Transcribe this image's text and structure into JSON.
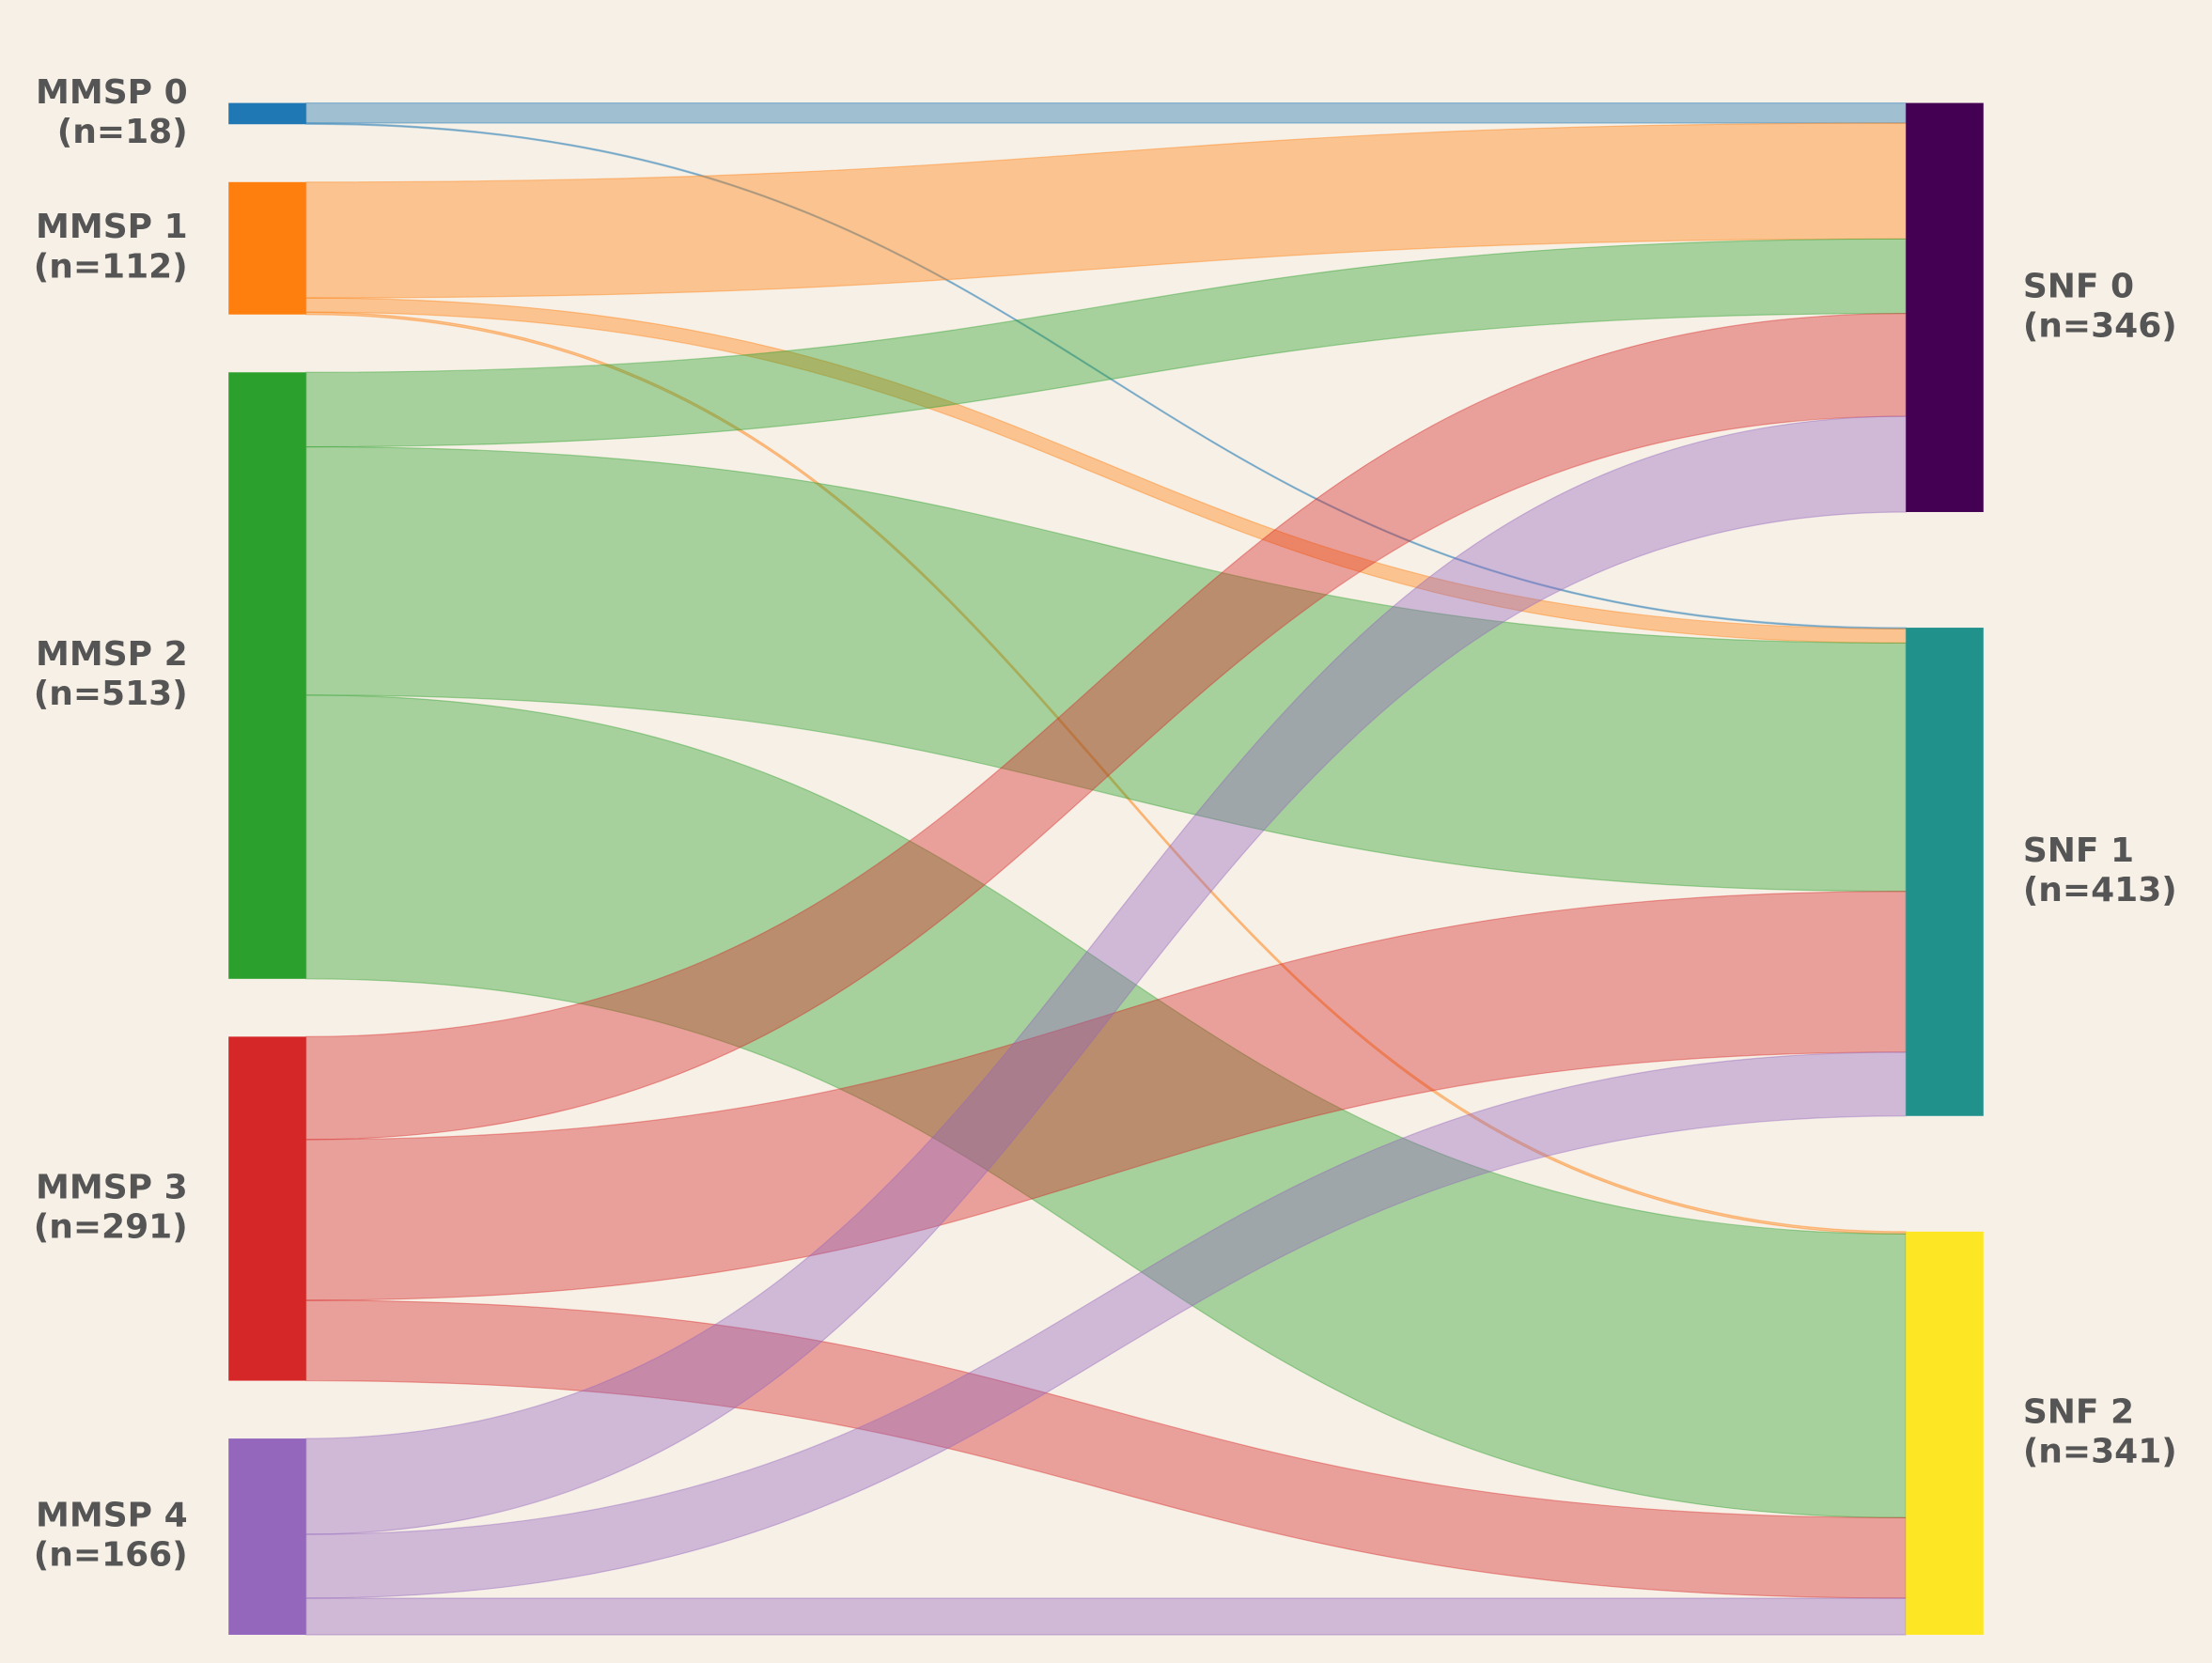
{
  "chart_data": {
    "type": "sankey",
    "nodes": [
      {
        "name": "MMSP 0",
        "value": 18,
        "value_label": "(n=18)",
        "color": "#1f77b4",
        "column": "left"
      },
      {
        "name": "MMSP 1",
        "value": 112,
        "value_label": "(n=112)",
        "color": "#ff7f0e",
        "column": "left"
      },
      {
        "name": "MMSP 2",
        "value": 513,
        "value_label": "(n=513)",
        "color": "#2ca02c",
        "column": "left"
      },
      {
        "name": "MMSP 3",
        "value": 291,
        "value_label": "(n=291)",
        "color": "#d62728",
        "column": "left"
      },
      {
        "name": "MMSP 4",
        "value": 166,
        "value_label": "(n=166)",
        "color": "#9467bd",
        "column": "left"
      },
      {
        "name": "SNF 0",
        "value": 346,
        "value_label": "(n=346)",
        "color": "#440154",
        "column": "right"
      },
      {
        "name": "SNF 1",
        "value": 413,
        "value_label": "(n=413)",
        "color": "#21918c",
        "column": "right"
      },
      {
        "name": "SNF 2",
        "value": 341,
        "value_label": "(n=341)",
        "color": "#fde725",
        "column": "right"
      }
    ],
    "links": [
      {
        "source": 0,
        "target": 5,
        "value": 17
      },
      {
        "source": 0,
        "target": 6,
        "value": 1
      },
      {
        "source": 1,
        "target": 5,
        "value": 98
      },
      {
        "source": 1,
        "target": 6,
        "value": 12
      },
      {
        "source": 1,
        "target": 7,
        "value": 2
      },
      {
        "source": 2,
        "target": 5,
        "value": 63
      },
      {
        "source": 2,
        "target": 6,
        "value": 210
      },
      {
        "source": 2,
        "target": 7,
        "value": 240
      },
      {
        "source": 3,
        "target": 5,
        "value": 87
      },
      {
        "source": 3,
        "target": 6,
        "value": 136
      },
      {
        "source": 3,
        "target": 7,
        "value": 68
      },
      {
        "source": 4,
        "target": 5,
        "value": 81
      },
      {
        "source": 4,
        "target": 6,
        "value": 54
      },
      {
        "source": 4,
        "target": 7,
        "value": 31
      }
    ],
    "link_opacity": 0.4
  }
}
